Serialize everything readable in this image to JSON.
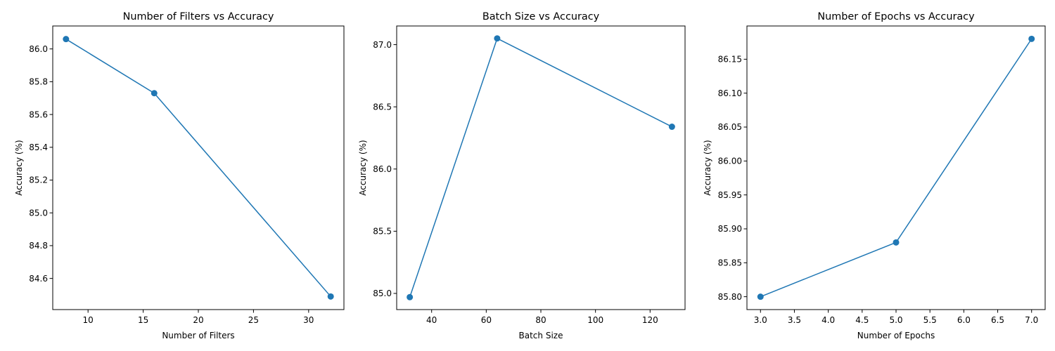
{
  "chart_data": [
    {
      "type": "line",
      "title": "Number of Filters vs Accuracy",
      "xlabel": "Number of Filters",
      "ylabel": "Accuracy (%)",
      "x": [
        8,
        16,
        32
      ],
      "y": [
        86.06,
        85.73,
        84.49
      ],
      "xlim": [
        6.8,
        33.2
      ],
      "ylim": [
        84.41,
        86.14
      ],
      "xticks": [
        10,
        15,
        20,
        25,
        30
      ],
      "xtick_labels": [
        "10",
        "15",
        "20",
        "25",
        "30"
      ],
      "yticks": [
        84.6,
        84.8,
        85.0,
        85.2,
        85.4,
        85.6,
        85.8,
        86.0
      ],
      "ytick_labels": [
        "84.6",
        "84.8",
        "85.0",
        "85.2",
        "85.4",
        "85.6",
        "85.8",
        "86.0"
      ],
      "grid": false,
      "markers": true,
      "color": "#1f77b4"
    },
    {
      "type": "line",
      "title": "Batch Size vs Accuracy",
      "xlabel": "Batch Size",
      "ylabel": "Accuracy (%)",
      "x": [
        32,
        64,
        128
      ],
      "y": [
        84.97,
        87.05,
        86.34
      ],
      "xlim": [
        27.2,
        132.8
      ],
      "ylim": [
        84.87,
        87.15
      ],
      "xticks": [
        40,
        60,
        80,
        100,
        120
      ],
      "xtick_labels": [
        "40",
        "60",
        "80",
        "100",
        "120"
      ],
      "yticks": [
        85.0,
        85.5,
        86.0,
        86.5,
        87.0
      ],
      "ytick_labels": [
        "85.0",
        "85.5",
        "86.0",
        "86.5",
        "87.0"
      ],
      "grid": false,
      "markers": true,
      "color": "#1f77b4"
    },
    {
      "type": "line",
      "title": "Number of Epochs vs Accuracy",
      "xlabel": "Number of Epochs",
      "ylabel": "Accuracy (%)",
      "x": [
        3,
        5,
        7
      ],
      "y": [
        85.8,
        85.88,
        86.18
      ],
      "xlim": [
        2.8,
        7.2
      ],
      "ylim": [
        85.781,
        86.199
      ],
      "xticks": [
        3.0,
        3.5,
        4.0,
        4.5,
        5.0,
        5.5,
        6.0,
        6.5,
        7.0
      ],
      "xtick_labels": [
        "3.0",
        "3.5",
        "4.0",
        "4.5",
        "5.0",
        "5.5",
        "6.0",
        "6.5",
        "7.0"
      ],
      "yticks": [
        85.8,
        85.85,
        85.9,
        85.95,
        86.0,
        86.05,
        86.1,
        86.15
      ],
      "ytick_labels": [
        "85.80",
        "85.85",
        "85.90",
        "85.95",
        "86.00",
        "86.05",
        "86.10",
        "86.15"
      ],
      "grid": false,
      "markers": true,
      "color": "#1f77b4"
    }
  ]
}
